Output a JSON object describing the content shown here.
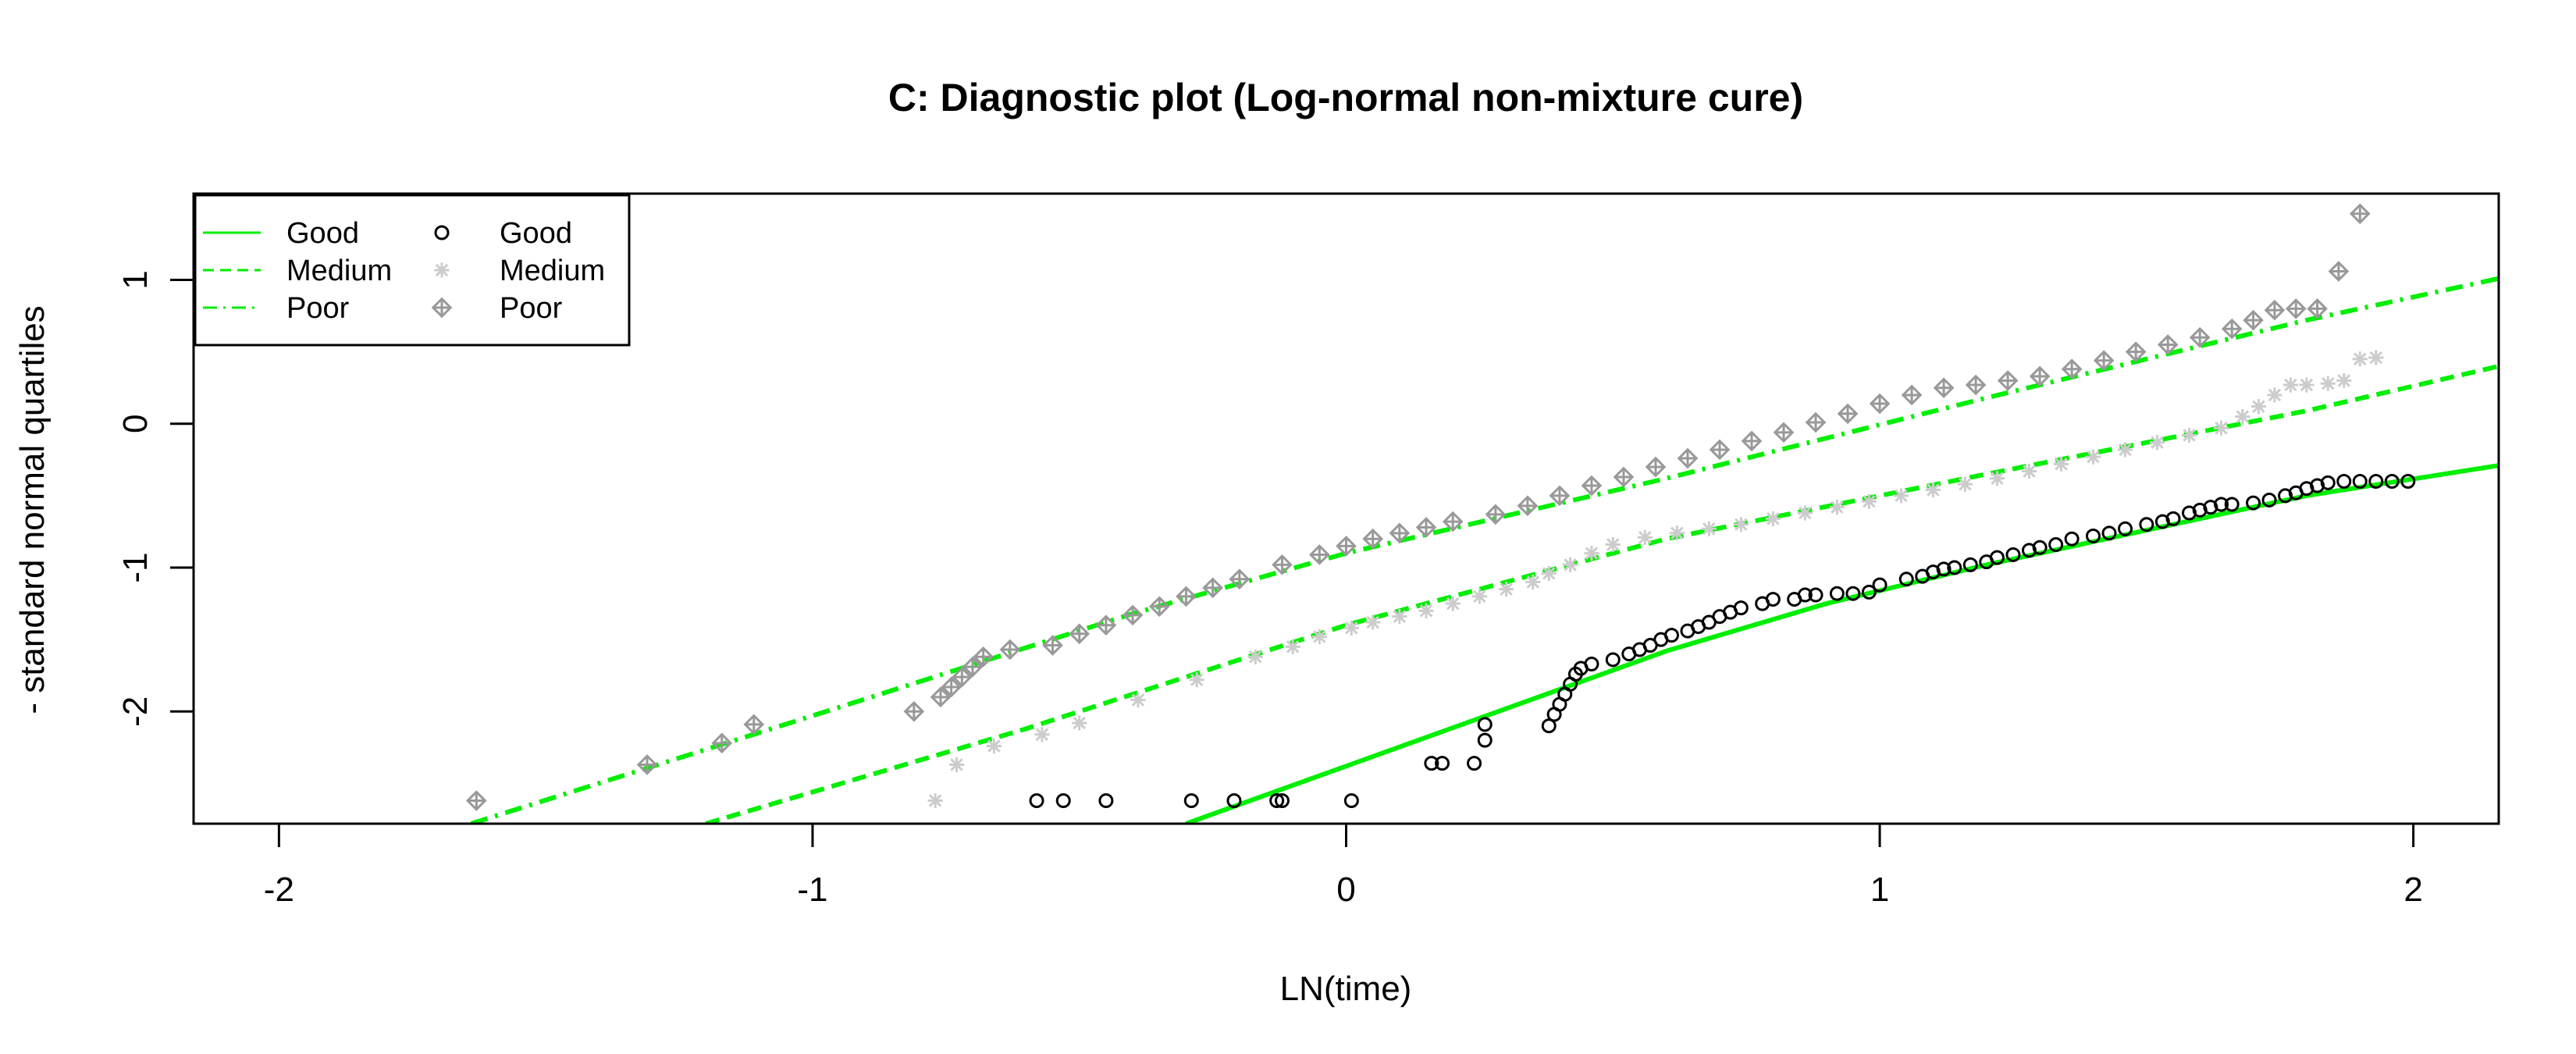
{
  "chart_data": {
    "type": "scatter",
    "title": "C: Diagnostic plot (Log-normal non-mixture cure)",
    "xlabel": "LN(time)",
    "ylabel": "- standard normal quartiles",
    "xlim": [
      -2.16,
      2.16
    ],
    "ylim": [
      -2.78,
      1.6
    ],
    "x_ticks": [
      -2,
      -1,
      0,
      1,
      2
    ],
    "y_ticks": [
      -2,
      -1,
      0,
      1
    ],
    "grid": false,
    "legend_position": "top-left",
    "legend": {
      "lines": [
        {
          "label": "Good",
          "style": "solid"
        },
        {
          "label": "Medium",
          "style": "dashed"
        },
        {
          "label": "Poor",
          "style": "dashdot"
        }
      ],
      "points": [
        {
          "label": "Good",
          "marker": "circle"
        },
        {
          "label": "Medium",
          "marker": "asterisk"
        },
        {
          "label": "Poor",
          "marker": "diamond-plus"
        }
      ]
    },
    "colors": {
      "fit_line": "#00ee00",
      "good_points": "#000000",
      "medium_points": "#cccccc",
      "poor_points": "#999999"
    },
    "fitted_lines": [
      {
        "name": "Good",
        "style": "solid",
        "x": [
          -0.3,
          0.0,
          0.3,
          0.6,
          0.9,
          1.2,
          1.5,
          1.8,
          2.16
        ],
        "y": [
          -2.78,
          -2.38,
          -1.98,
          -1.58,
          -1.25,
          -0.98,
          -0.74,
          -0.5,
          -0.29
        ]
      },
      {
        "name": "Medium",
        "style": "dashed",
        "x": [
          -1.2,
          -0.6,
          0.0,
          0.6,
          1.2,
          1.8,
          2.16
        ],
        "y": [
          -2.78,
          -2.12,
          -1.4,
          -0.8,
          -0.35,
          0.09,
          0.4
        ]
      },
      {
        "name": "Poor",
        "style": "dashdot",
        "x": [
          -1.64,
          -1.0,
          -0.4,
          0.0,
          0.6,
          1.2,
          1.8,
          2.16
        ],
        "y": [
          -2.78,
          -2.03,
          -1.32,
          -0.9,
          -0.38,
          0.18,
          0.72,
          1.01
        ]
      }
    ],
    "series": [
      {
        "name": "Good",
        "marker": "circle",
        "x": [
          -0.58,
          -0.53,
          -0.45,
          -0.29,
          -0.21,
          -0.13,
          -0.12,
          0.01,
          0.16,
          0.18,
          0.24,
          0.26,
          0.26,
          0.38,
          0.39,
          0.4,
          0.41,
          0.42,
          0.43,
          0.44,
          0.46,
          0.5,
          0.53,
          0.55,
          0.57,
          0.59,
          0.61,
          0.64,
          0.66,
          0.68,
          0.7,
          0.72,
          0.74,
          0.78,
          0.8,
          0.84,
          0.86,
          0.88,
          0.92,
          0.95,
          0.98,
          1.0,
          1.05,
          1.08,
          1.1,
          1.12,
          1.14,
          1.17,
          1.2,
          1.22,
          1.25,
          1.28,
          1.3,
          1.33,
          1.36,
          1.4,
          1.43,
          1.46,
          1.5,
          1.53,
          1.55,
          1.58,
          1.6,
          1.62,
          1.64,
          1.66,
          1.7,
          1.73,
          1.76,
          1.78,
          1.8,
          1.82,
          1.84,
          1.87,
          1.9,
          1.93,
          1.96,
          1.99
        ],
        "y": [
          -2.62,
          -2.62,
          -2.62,
          -2.62,
          -2.62,
          -2.62,
          -2.62,
          -2.62,
          -2.36,
          -2.36,
          -2.36,
          -2.2,
          -2.09,
          -2.1,
          -2.02,
          -1.95,
          -1.88,
          -1.81,
          -1.74,
          -1.7,
          -1.67,
          -1.64,
          -1.6,
          -1.57,
          -1.54,
          -1.5,
          -1.47,
          -1.44,
          -1.41,
          -1.38,
          -1.34,
          -1.31,
          -1.28,
          -1.25,
          -1.22,
          -1.22,
          -1.19,
          -1.19,
          -1.18,
          -1.18,
          -1.17,
          -1.12,
          -1.08,
          -1.06,
          -1.03,
          -1.01,
          -1.0,
          -0.98,
          -0.96,
          -0.93,
          -0.91,
          -0.88,
          -0.86,
          -0.84,
          -0.8,
          -0.78,
          -0.76,
          -0.73,
          -0.7,
          -0.68,
          -0.66,
          -0.62,
          -0.6,
          -0.58,
          -0.56,
          -0.56,
          -0.55,
          -0.53,
          -0.5,
          -0.48,
          -0.45,
          -0.43,
          -0.41,
          -0.4,
          -0.4,
          -0.4,
          -0.4,
          -0.4
        ]
      },
      {
        "name": "Medium",
        "marker": "asterisk",
        "x": [
          -0.77,
          -0.73,
          -0.66,
          -0.57,
          -0.5,
          -0.39,
          -0.28,
          -0.17,
          -0.1,
          -0.05,
          0.01,
          0.05,
          0.1,
          0.15,
          0.2,
          0.25,
          0.3,
          0.35,
          0.38,
          0.42,
          0.46,
          0.5,
          0.56,
          0.62,
          0.68,
          0.74,
          0.8,
          0.86,
          0.92,
          0.98,
          1.04,
          1.1,
          1.16,
          1.22,
          1.28,
          1.34,
          1.4,
          1.46,
          1.52,
          1.58,
          1.64,
          1.68,
          1.71,
          1.74,
          1.77,
          1.8,
          1.84,
          1.87,
          1.9,
          1.93
        ],
        "y": [
          -2.62,
          -2.37,
          -2.24,
          -2.16,
          -2.08,
          -1.92,
          -1.78,
          -1.62,
          -1.55,
          -1.48,
          -1.42,
          -1.38,
          -1.34,
          -1.3,
          -1.25,
          -1.2,
          -1.15,
          -1.1,
          -1.04,
          -0.98,
          -0.9,
          -0.84,
          -0.79,
          -0.76,
          -0.73,
          -0.7,
          -0.66,
          -0.62,
          -0.58,
          -0.54,
          -0.5,
          -0.46,
          -0.42,
          -0.38,
          -0.33,
          -0.28,
          -0.23,
          -0.18,
          -0.13,
          -0.08,
          -0.03,
          0.05,
          0.12,
          0.2,
          0.27,
          0.27,
          0.28,
          0.3,
          0.45,
          0.46
        ]
      },
      {
        "name": "Poor",
        "marker": "diamond-plus",
        "x": [
          -1.63,
          -1.31,
          -1.17,
          -1.11,
          -0.81,
          -0.76,
          -0.74,
          -0.72,
          -0.7,
          -0.68,
          -0.63,
          -0.55,
          -0.5,
          -0.45,
          -0.4,
          -0.35,
          -0.3,
          -0.25,
          -0.2,
          -0.12,
          -0.05,
          0.0,
          0.05,
          0.1,
          0.15,
          0.2,
          0.28,
          0.34,
          0.4,
          0.46,
          0.52,
          0.58,
          0.64,
          0.7,
          0.76,
          0.82,
          0.88,
          0.94,
          1.0,
          1.06,
          1.12,
          1.18,
          1.24,
          1.3,
          1.36,
          1.42,
          1.48,
          1.54,
          1.6,
          1.66,
          1.7,
          1.74,
          1.78,
          1.82,
          1.86,
          1.9
        ],
        "y": [
          -2.62,
          -2.37,
          -2.22,
          -2.09,
          -2.0,
          -1.9,
          -1.83,
          -1.76,
          -1.69,
          -1.62,
          -1.57,
          -1.54,
          -1.46,
          -1.4,
          -1.33,
          -1.27,
          -1.2,
          -1.14,
          -1.08,
          -0.98,
          -0.91,
          -0.85,
          -0.8,
          -0.76,
          -0.72,
          -0.68,
          -0.63,
          -0.57,
          -0.5,
          -0.43,
          -0.37,
          -0.3,
          -0.24,
          -0.18,
          -0.12,
          -0.06,
          0.01,
          0.07,
          0.14,
          0.2,
          0.25,
          0.27,
          0.3,
          0.33,
          0.38,
          0.44,
          0.5,
          0.55,
          0.6,
          0.66,
          0.72,
          0.79,
          0.8,
          0.8,
          1.06,
          1.46
        ]
      }
    ]
  }
}
